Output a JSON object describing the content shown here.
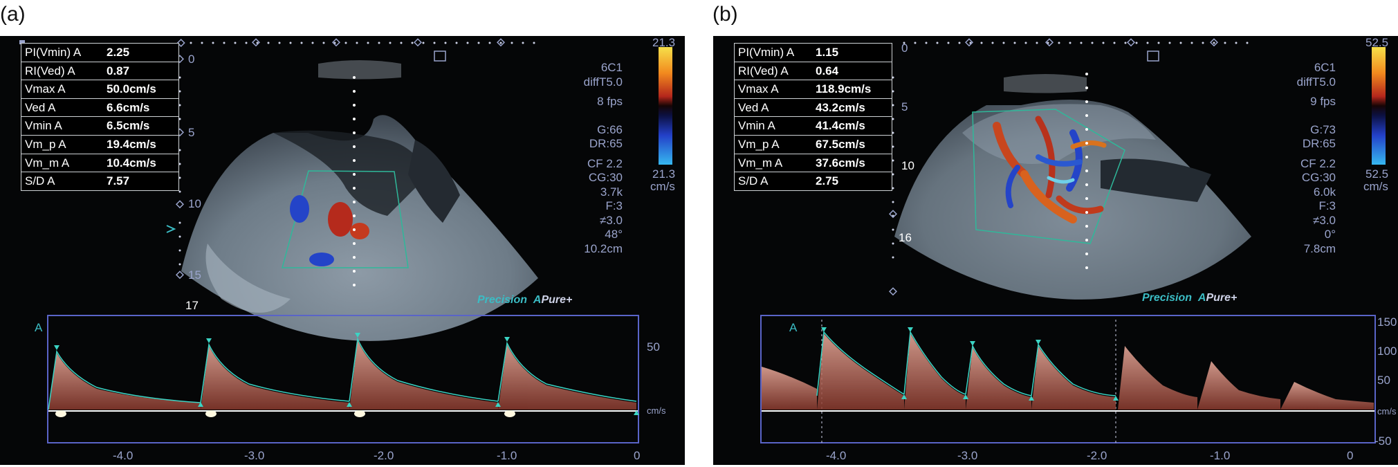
{
  "panels": [
    {
      "label": "(a)",
      "measurements": [
        {
          "label": "PI(Vmin) A",
          "value": "2.25"
        },
        {
          "label": "RI(Ved) A",
          "value": "0.87"
        },
        {
          "label": "Vmax A",
          "value": "50.0cm/s"
        },
        {
          "label": "Ved A",
          "value": "6.6cm/s"
        },
        {
          "label": "Vmin A",
          "value": "6.5cm/s"
        },
        {
          "label": "Vm_p A",
          "value": "19.4cm/s"
        },
        {
          "label": "Vm_m A",
          "value": "10.4cm/s"
        },
        {
          "label": "S/D A",
          "value": "7.57"
        }
      ],
      "scale_top": "21.3",
      "scale_bottom": "21.3",
      "scale_unit": "cm/s",
      "settings": [
        "6C1",
        "diffT5.0",
        "8 fps",
        "",
        "G:66",
        "DR:65",
        "CF 2.2",
        "CG:30",
        "3.7k",
        "F:3",
        "≠3.0",
        "48°",
        "10.2cm"
      ],
      "depth_marks": [
        "0",
        "5",
        "10",
        "15",
        "17"
      ],
      "brand": [
        "Precision",
        "A",
        "Pure+"
      ],
      "spectrum": {
        "y_ticks": [
          "50"
        ],
        "y_unit": "cm/s",
        "x_ticks": [
          "-4.0",
          "-3.0",
          "-2.0",
          "-1.0",
          "0"
        ],
        "gate_label": "A"
      }
    },
    {
      "label": "(b)",
      "measurements": [
        {
          "label": "PI(Vmin) A",
          "value": "1.15"
        },
        {
          "label": "RI(Ved) A",
          "value": "0.64"
        },
        {
          "label": "Vmax A",
          "value": "118.9cm/s"
        },
        {
          "label": "Ved A",
          "value": "43.2cm/s"
        },
        {
          "label": "Vmin A",
          "value": "41.4cm/s"
        },
        {
          "label": "Vm_p A",
          "value": "67.5cm/s"
        },
        {
          "label": "Vm_m A",
          "value": "37.6cm/s"
        },
        {
          "label": "S/D A",
          "value": "2.75"
        }
      ],
      "scale_top": "52.5",
      "scale_bottom": "52.5",
      "scale_unit": "cm/s",
      "settings": [
        "6C1",
        "diffT5.0",
        "9 fps",
        "",
        "G:73",
        "DR:65",
        "CF 2.2",
        "CG:30",
        "6.0k",
        "F:3",
        "≠3.0",
        "0°",
        "7.8cm"
      ],
      "depth_marks": [
        "0",
        "5",
        "10",
        "16"
      ],
      "brand": [
        "Precision",
        "A",
        "Pure+"
      ],
      "spectrum": {
        "y_ticks": [
          "150",
          "100",
          "50",
          "cm/s",
          "-50"
        ],
        "y_unit": "cm/s",
        "x_ticks": [
          "-4.0",
          "-3.0",
          "-2.0",
          "-1.0",
          "0"
        ],
        "gate_label": "A"
      }
    }
  ],
  "colors": {
    "panel_bg": "#050607",
    "frame": "#5a64c8",
    "text": "#9aa4cc",
    "envelope": "#3bd4c4",
    "doppler": "#e89a86"
  }
}
